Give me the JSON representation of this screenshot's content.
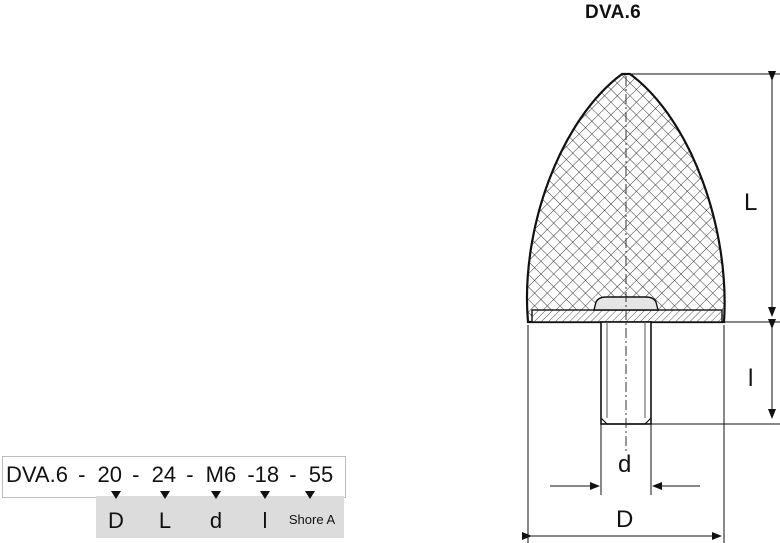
{
  "title": "DVA.6",
  "code": {
    "parts": [
      "DVA.6",
      "-",
      "20",
      "-",
      "24",
      "-",
      "M6",
      "-18",
      "-",
      "55"
    ]
  },
  "legend": [
    "D",
    "L",
    "d",
    "l",
    "Shore A"
  ],
  "dimensions": {
    "L": "L",
    "l": "l",
    "d": "d",
    "D": "D"
  }
}
